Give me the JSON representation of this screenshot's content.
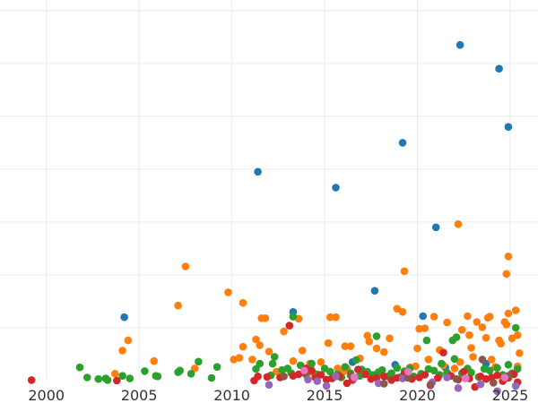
{
  "chart_data": {
    "type": "scatter",
    "title": "",
    "xlabel": "",
    "ylabel": "",
    "xlim": [
      1997.5,
      2026.5
    ],
    "ylim": [
      0,
      72
    ],
    "x_ticks": [
      2000,
      2005,
      2010,
      2015,
      2020,
      2025
    ],
    "x_tick_labels": [
      "2000",
      "2005",
      "2010",
      "2015",
      "2020",
      "2025"
    ],
    "y_gridlines": [
      10,
      20,
      30,
      40,
      50,
      60,
      70
    ],
    "grid": true,
    "legend": "none",
    "series": [
      {
        "color": "#1f77b4",
        "points": [
          [
            2004.2,
            12
          ],
          [
            2011.4,
            39.5
          ],
          [
            2013.3,
            13
          ],
          [
            2015.6,
            36.5
          ],
          [
            2017.7,
            17
          ],
          [
            2019.2,
            45
          ],
          [
            2020.3,
            12.2
          ],
          [
            2021.0,
            29
          ],
          [
            2022.3,
            63.5
          ],
          [
            2024.4,
            59
          ],
          [
            2024.9,
            48
          ],
          [
            2016.5,
            3.5
          ],
          [
            2018.8,
            3
          ],
          [
            2021.5,
            2.5
          ],
          [
            2023.7,
            3.2
          ]
        ]
      },
      {
        "color": "#ff7f0e",
        "points": [
          [
            2003.7,
            1.3
          ],
          [
            2004.1,
            5.7
          ],
          [
            2004.4,
            7.6
          ],
          [
            2005.8,
            3.7
          ],
          [
            2007.1,
            14.2
          ],
          [
            2007.5,
            21.6
          ],
          [
            2008.0,
            2.3
          ],
          [
            2009.8,
            16.7
          ],
          [
            2010.1,
            4.0
          ],
          [
            2010.4,
            4.3
          ],
          [
            2010.6,
            14.7
          ],
          [
            2010.6,
            6.4
          ],
          [
            2011.1,
            4.0
          ],
          [
            2011.3,
            7.8
          ],
          [
            2011.5,
            6.7
          ],
          [
            2011.6,
            11.8
          ],
          [
            2011.8,
            11.8
          ],
          [
            2012.0,
            5.5
          ],
          [
            2012.4,
            1.7
          ],
          [
            2012.8,
            9.3
          ],
          [
            2013.3,
            3.7
          ],
          [
            2013.6,
            11.7
          ],
          [
            2013.8,
            5.7
          ],
          [
            2014.2,
            3.2
          ],
          [
            2014.4,
            1.4
          ],
          [
            2014.8,
            3.5
          ],
          [
            2015.2,
            7.1
          ],
          [
            2015.3,
            12.0
          ],
          [
            2015.6,
            12.0
          ],
          [
            2015.7,
            2.3
          ],
          [
            2016.0,
            1.7
          ],
          [
            2016.2,
            2.3
          ],
          [
            2016.1,
            6.5
          ],
          [
            2016.4,
            6.5
          ],
          [
            2016.9,
            4.2
          ],
          [
            2017.3,
            8.5
          ],
          [
            2017.4,
            7.4
          ],
          [
            2017.8,
            6.1
          ],
          [
            2018.2,
            5.4
          ],
          [
            2018.5,
            8.0
          ],
          [
            2018.9,
            13.6
          ],
          [
            2019.2,
            13.0
          ],
          [
            2019.3,
            20.7
          ],
          [
            2019.6,
            2.5
          ],
          [
            2019.9,
            2.7
          ],
          [
            2020.0,
            6.1
          ],
          [
            2020.1,
            9.8
          ],
          [
            2020.4,
            9.9
          ],
          [
            2020.6,
            4.0
          ],
          [
            2020.9,
            12.1
          ],
          [
            2021.2,
            5.8
          ],
          [
            2021.4,
            2.9
          ],
          [
            2021.6,
            11.0
          ],
          [
            2022.0,
            2.3
          ],
          [
            2022.2,
            29.6
          ],
          [
            2022.3,
            3.5
          ],
          [
            2022.4,
            9.6
          ],
          [
            2022.7,
            12.2
          ],
          [
            2022.8,
            8.6
          ],
          [
            2022.9,
            6.2
          ],
          [
            2023.0,
            4.5
          ],
          [
            2023.2,
            11.1
          ],
          [
            2023.5,
            10.1
          ],
          [
            2023.7,
            8.1
          ],
          [
            2023.8,
            11.9
          ],
          [
            2023.9,
            12.1
          ],
          [
            2024.0,
            4.0
          ],
          [
            2024.2,
            2.6
          ],
          [
            2024.4,
            7.6
          ],
          [
            2024.5,
            7.0
          ],
          [
            2024.7,
            11.1
          ],
          [
            2024.8,
            10.6
          ],
          [
            2024.8,
            20.2
          ],
          [
            2024.9,
            23.5
          ],
          [
            2024.9,
            12.7
          ],
          [
            2025.1,
            8.0
          ],
          [
            2025.3,
            13.3
          ],
          [
            2025.4,
            8.6
          ],
          [
            2025.5,
            5.2
          ],
          [
            2025.4,
            2.7
          ]
        ]
      },
      {
        "color": "#2ca02c",
        "points": [
          [
            2001.8,
            2.5
          ],
          [
            2002.2,
            0.6
          ],
          [
            2002.8,
            0.3
          ],
          [
            2003.2,
            0.4
          ],
          [
            2003.3,
            0.1
          ],
          [
            2004.1,
            0.9
          ],
          [
            2004.5,
            0.4
          ],
          [
            2005.3,
            1.8
          ],
          [
            2005.9,
            0.9
          ],
          [
            2006.0,
            0.8
          ],
          [
            2007.1,
            1.6
          ],
          [
            2007.2,
            1.9
          ],
          [
            2007.8,
            1.3
          ],
          [
            2008.2,
            3.6
          ],
          [
            2008.9,
            0.5
          ],
          [
            2009.2,
            2.6
          ],
          [
            2011.3,
            2.2
          ],
          [
            2011.5,
            3.2
          ],
          [
            2012.1,
            1.0
          ],
          [
            2012.2,
            3.2
          ],
          [
            2012.3,
            4.5
          ],
          [
            2012.7,
            2.0
          ],
          [
            2013.0,
            2.3
          ],
          [
            2013.2,
            1.4
          ],
          [
            2013.3,
            12.1
          ],
          [
            2013.7,
            2.9
          ],
          [
            2014.0,
            1.1
          ],
          [
            2014.3,
            3.2
          ],
          [
            2014.6,
            1.2
          ],
          [
            2015.0,
            2.3
          ],
          [
            2015.3,
            1.7
          ],
          [
            2015.7,
            1.2
          ],
          [
            2015.9,
            0.6
          ],
          [
            2016.1,
            2.6
          ],
          [
            2016.4,
            1.4
          ],
          [
            2016.7,
            3.9
          ],
          [
            2016.9,
            0.9
          ],
          [
            2017.0,
            2.1
          ],
          [
            2017.3,
            1.7
          ],
          [
            2017.6,
            1.1
          ],
          [
            2017.8,
            8.4
          ],
          [
            2017.9,
            1.6
          ],
          [
            2018.1,
            2.0
          ],
          [
            2018.4,
            0.8
          ],
          [
            2018.6,
            1.4
          ],
          [
            2018.9,
            2.4
          ],
          [
            2019.1,
            0.7
          ],
          [
            2019.3,
            1.8
          ],
          [
            2019.6,
            2.3
          ],
          [
            2019.8,
            0.8
          ],
          [
            2020.2,
            1.3
          ],
          [
            2020.5,
            7.6
          ],
          [
            2020.6,
            2.2
          ],
          [
            2020.9,
            1.9
          ],
          [
            2021.2,
            1.1
          ],
          [
            2021.3,
            3.2
          ],
          [
            2021.6,
            1.5
          ],
          [
            2021.9,
            7.6
          ],
          [
            2022.0,
            4.1
          ],
          [
            2022.1,
            8.2
          ],
          [
            2022.4,
            1.4
          ],
          [
            2022.7,
            2.3
          ],
          [
            2022.9,
            1.5
          ],
          [
            2023.3,
            0.7
          ],
          [
            2023.6,
            2.2
          ],
          [
            2023.9,
            1.9
          ],
          [
            2024.3,
            2.4
          ],
          [
            2024.6,
            1.1
          ],
          [
            2024.9,
            3.0
          ],
          [
            2025.1,
            1.4
          ],
          [
            2025.3,
            10.0
          ],
          [
            2025.4,
            2.2
          ]
        ]
      },
      {
        "color": "#d62728",
        "points": [
          [
            1999.2,
            0.1
          ],
          [
            2003.8,
            0.0
          ],
          [
            2011.2,
            0.0
          ],
          [
            2011.4,
            0.8
          ],
          [
            2011.9,
            0.7
          ],
          [
            2012.6,
            0.6
          ],
          [
            2013.1,
            10.4
          ],
          [
            2013.3,
            0.9
          ],
          [
            2013.6,
            1.2
          ],
          [
            2013.9,
            1.6
          ],
          [
            2014.0,
            2.3
          ],
          [
            2014.3,
            1.9
          ],
          [
            2014.5,
            0.6
          ],
          [
            2014.8,
            1.1
          ],
          [
            2015.1,
            0.2
          ],
          [
            2015.4,
            0.4
          ],
          [
            2015.8,
            0.8
          ],
          [
            2016.2,
            -0.5
          ],
          [
            2016.5,
            0.1
          ],
          [
            2016.8,
            2.1
          ],
          [
            2017.2,
            1.2
          ],
          [
            2017.5,
            0.3
          ],
          [
            2017.8,
            0.5
          ],
          [
            2018.2,
            0.8
          ],
          [
            2018.6,
            0.1
          ],
          [
            2018.9,
            0.5
          ],
          [
            2019.3,
            1.3
          ],
          [
            2019.7,
            0.3
          ],
          [
            2020.1,
            0.6
          ],
          [
            2020.4,
            1.1
          ],
          [
            2020.7,
            -0.9
          ],
          [
            2021.1,
            0.5
          ],
          [
            2021.4,
            5.3
          ],
          [
            2021.8,
            0.9
          ],
          [
            2022.2,
            0.2
          ],
          [
            2022.5,
            1.7
          ],
          [
            2022.8,
            0.4
          ],
          [
            2023.1,
            -1.2
          ],
          [
            2023.4,
            0.8
          ],
          [
            2023.7,
            0.3
          ],
          [
            2024.0,
            0.6
          ],
          [
            2024.3,
            1.0
          ],
          [
            2024.6,
            -0.1
          ],
          [
            2024.9,
            0.5
          ],
          [
            2025.2,
            1.2
          ],
          [
            2025.4,
            -0.3
          ]
        ]
      },
      {
        "color": "#9467bd",
        "points": [
          [
            2012.0,
            -0.8
          ],
          [
            2014.1,
            0.2
          ],
          [
            2014.6,
            -0.1
          ],
          [
            2015.1,
            -1.0
          ],
          [
            2015.6,
            0.8
          ],
          [
            2016.6,
            0.5
          ],
          [
            2017.9,
            -0.5
          ],
          [
            2019.2,
            0.4
          ],
          [
            2020.8,
            -0.3
          ],
          [
            2021.6,
            0.6
          ],
          [
            2022.2,
            -1.4
          ],
          [
            2023.4,
            -0.7
          ],
          [
            2024.3,
            -2.0
          ],
          [
            2025.3,
            -1.0
          ]
        ]
      },
      {
        "color": "#8c564b",
        "points": [
          [
            2012.8,
            0.8
          ],
          [
            2016.4,
            1.0
          ],
          [
            2018.2,
            -0.6
          ],
          [
            2019.5,
            0.5
          ],
          [
            2020.7,
            -0.8
          ],
          [
            2022.1,
            0.3
          ],
          [
            2023.5,
            4.0
          ],
          [
            2024.1,
            -0.4
          ],
          [
            2024.9,
            0.9
          ]
        ]
      },
      {
        "color": "#e377c2",
        "points": [
          [
            2013.9,
            1.9
          ],
          [
            2016.6,
            0.7
          ],
          [
            2019.5,
            1.7
          ],
          [
            2022.6,
            0.4
          ],
          [
            2024.7,
            0.6
          ]
        ]
      }
    ]
  }
}
